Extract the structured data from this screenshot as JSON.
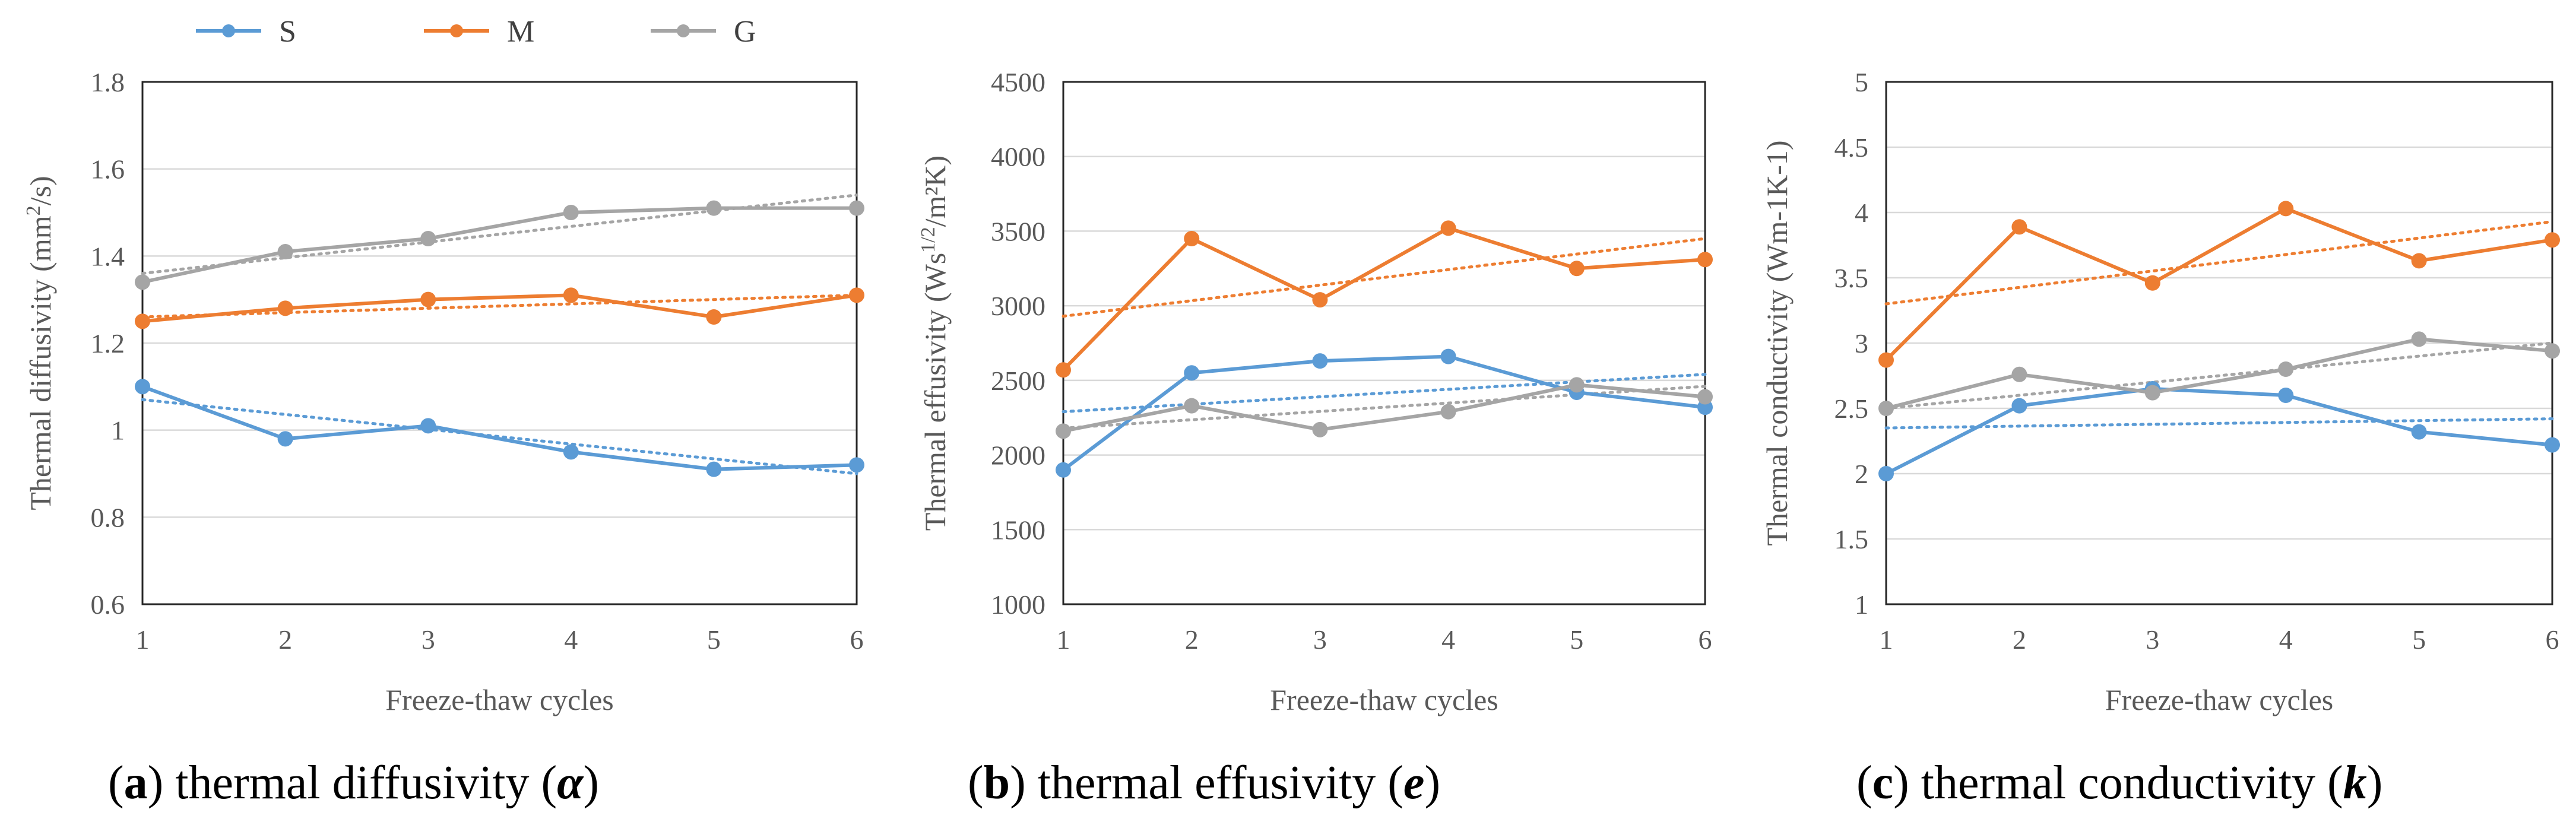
{
  "legend": {
    "items": [
      {
        "key": "S",
        "label": "S",
        "color": "#5B9BD5"
      },
      {
        "key": "M",
        "label": "M",
        "color": "#ED7D31"
      },
      {
        "key": "G",
        "label": "G",
        "color": "#A5A5A5"
      }
    ]
  },
  "chart_data": [
    {
      "type": "line",
      "caption": {
        "letter": "a",
        "text": " thermal diffusivity (",
        "symbol": "α",
        "close": ")"
      },
      "xlabel": "Freeze-thaw cycles",
      "ylabel": {
        "main": "Thermal diffusivity (mm",
        "sup": "2",
        "tail": "/s)"
      },
      "categories": [
        "1",
        "2",
        "3",
        "4",
        "5",
        "6"
      ],
      "ylim": [
        0.6,
        1.8
      ],
      "yticks": [
        0.6,
        0.8,
        1,
        1.2,
        1.4,
        1.6,
        1.8
      ],
      "ytick_labels": [
        "0.6",
        "0.8",
        "1",
        "1.2",
        "1.4",
        "1.6",
        "1.8"
      ],
      "series": [
        {
          "name": "S",
          "values": [
            1.1,
            0.98,
            1.01,
            0.95,
            0.91,
            0.92
          ],
          "trend": [
            1.07,
            0.9
          ]
        },
        {
          "name": "M",
          "values": [
            1.25,
            1.28,
            1.3,
            1.31,
            1.26,
            1.31
          ],
          "trend": [
            1.26,
            1.31
          ]
        },
        {
          "name": "G",
          "values": [
            1.34,
            1.41,
            1.44,
            1.5,
            1.51,
            1.51
          ],
          "trend": [
            1.36,
            1.54
          ]
        }
      ]
    },
    {
      "type": "line",
      "caption": {
        "letter": "b",
        "text": " thermal effusivity (",
        "symbol": "e",
        "close": ")"
      },
      "xlabel": "Freeze-thaw cycles",
      "ylabel": {
        "main": "Thermal effusivity (Ws",
        "sup": "1/2",
        "tail": "/m²K)"
      },
      "categories": [
        "1",
        "2",
        "3",
        "4",
        "5",
        "6"
      ],
      "ylim": [
        1000,
        4500
      ],
      "yticks": [
        1000,
        1500,
        2000,
        2500,
        3000,
        3500,
        4000,
        4500
      ],
      "ytick_labels": [
        "1000",
        "1500",
        "2000",
        "2500",
        "3000",
        "3500",
        "4000",
        "4500"
      ],
      "series": [
        {
          "name": "S",
          "values": [
            1900,
            2550,
            2630,
            2660,
            2420,
            2320
          ],
          "trend": [
            2290,
            2540
          ]
        },
        {
          "name": "M",
          "values": [
            2570,
            3450,
            3040,
            3520,
            3250,
            3310
          ],
          "trend": [
            2930,
            3450
          ]
        },
        {
          "name": "G",
          "values": [
            2160,
            2330,
            2170,
            2290,
            2470,
            2390
          ],
          "trend": [
            2180,
            2460
          ]
        }
      ]
    },
    {
      "type": "line",
      "caption": {
        "letter": "c",
        "text": " thermal conductivity (",
        "symbol": "k",
        "close": ")"
      },
      "xlabel": "Freeze-thaw cycles",
      "ylabel": {
        "main": "Thermal conductivity (Wm-1K-1)",
        "sup": "",
        "tail": ""
      },
      "categories": [
        "1",
        "2",
        "3",
        "4",
        "5",
        "6"
      ],
      "ylim": [
        1,
        5
      ],
      "yticks": [
        1,
        1.5,
        2,
        2.5,
        3,
        3.5,
        4,
        4.5,
        5
      ],
      "ytick_labels": [
        "1",
        "1.5",
        "2",
        "2.5",
        "3",
        "3.5",
        "4",
        "4.5",
        "5"
      ],
      "series": [
        {
          "name": "S",
          "values": [
            2.0,
            2.52,
            2.65,
            2.6,
            2.32,
            2.22
          ],
          "trend": [
            2.35,
            2.42
          ]
        },
        {
          "name": "M",
          "values": [
            2.87,
            3.89,
            3.46,
            4.03,
            3.63,
            3.79
          ],
          "trend": [
            3.3,
            3.93
          ]
        },
        {
          "name": "G",
          "values": [
            2.5,
            2.76,
            2.62,
            2.8,
            3.03,
            2.94
          ],
          "trend": [
            2.5,
            3.0
          ]
        }
      ]
    }
  ]
}
